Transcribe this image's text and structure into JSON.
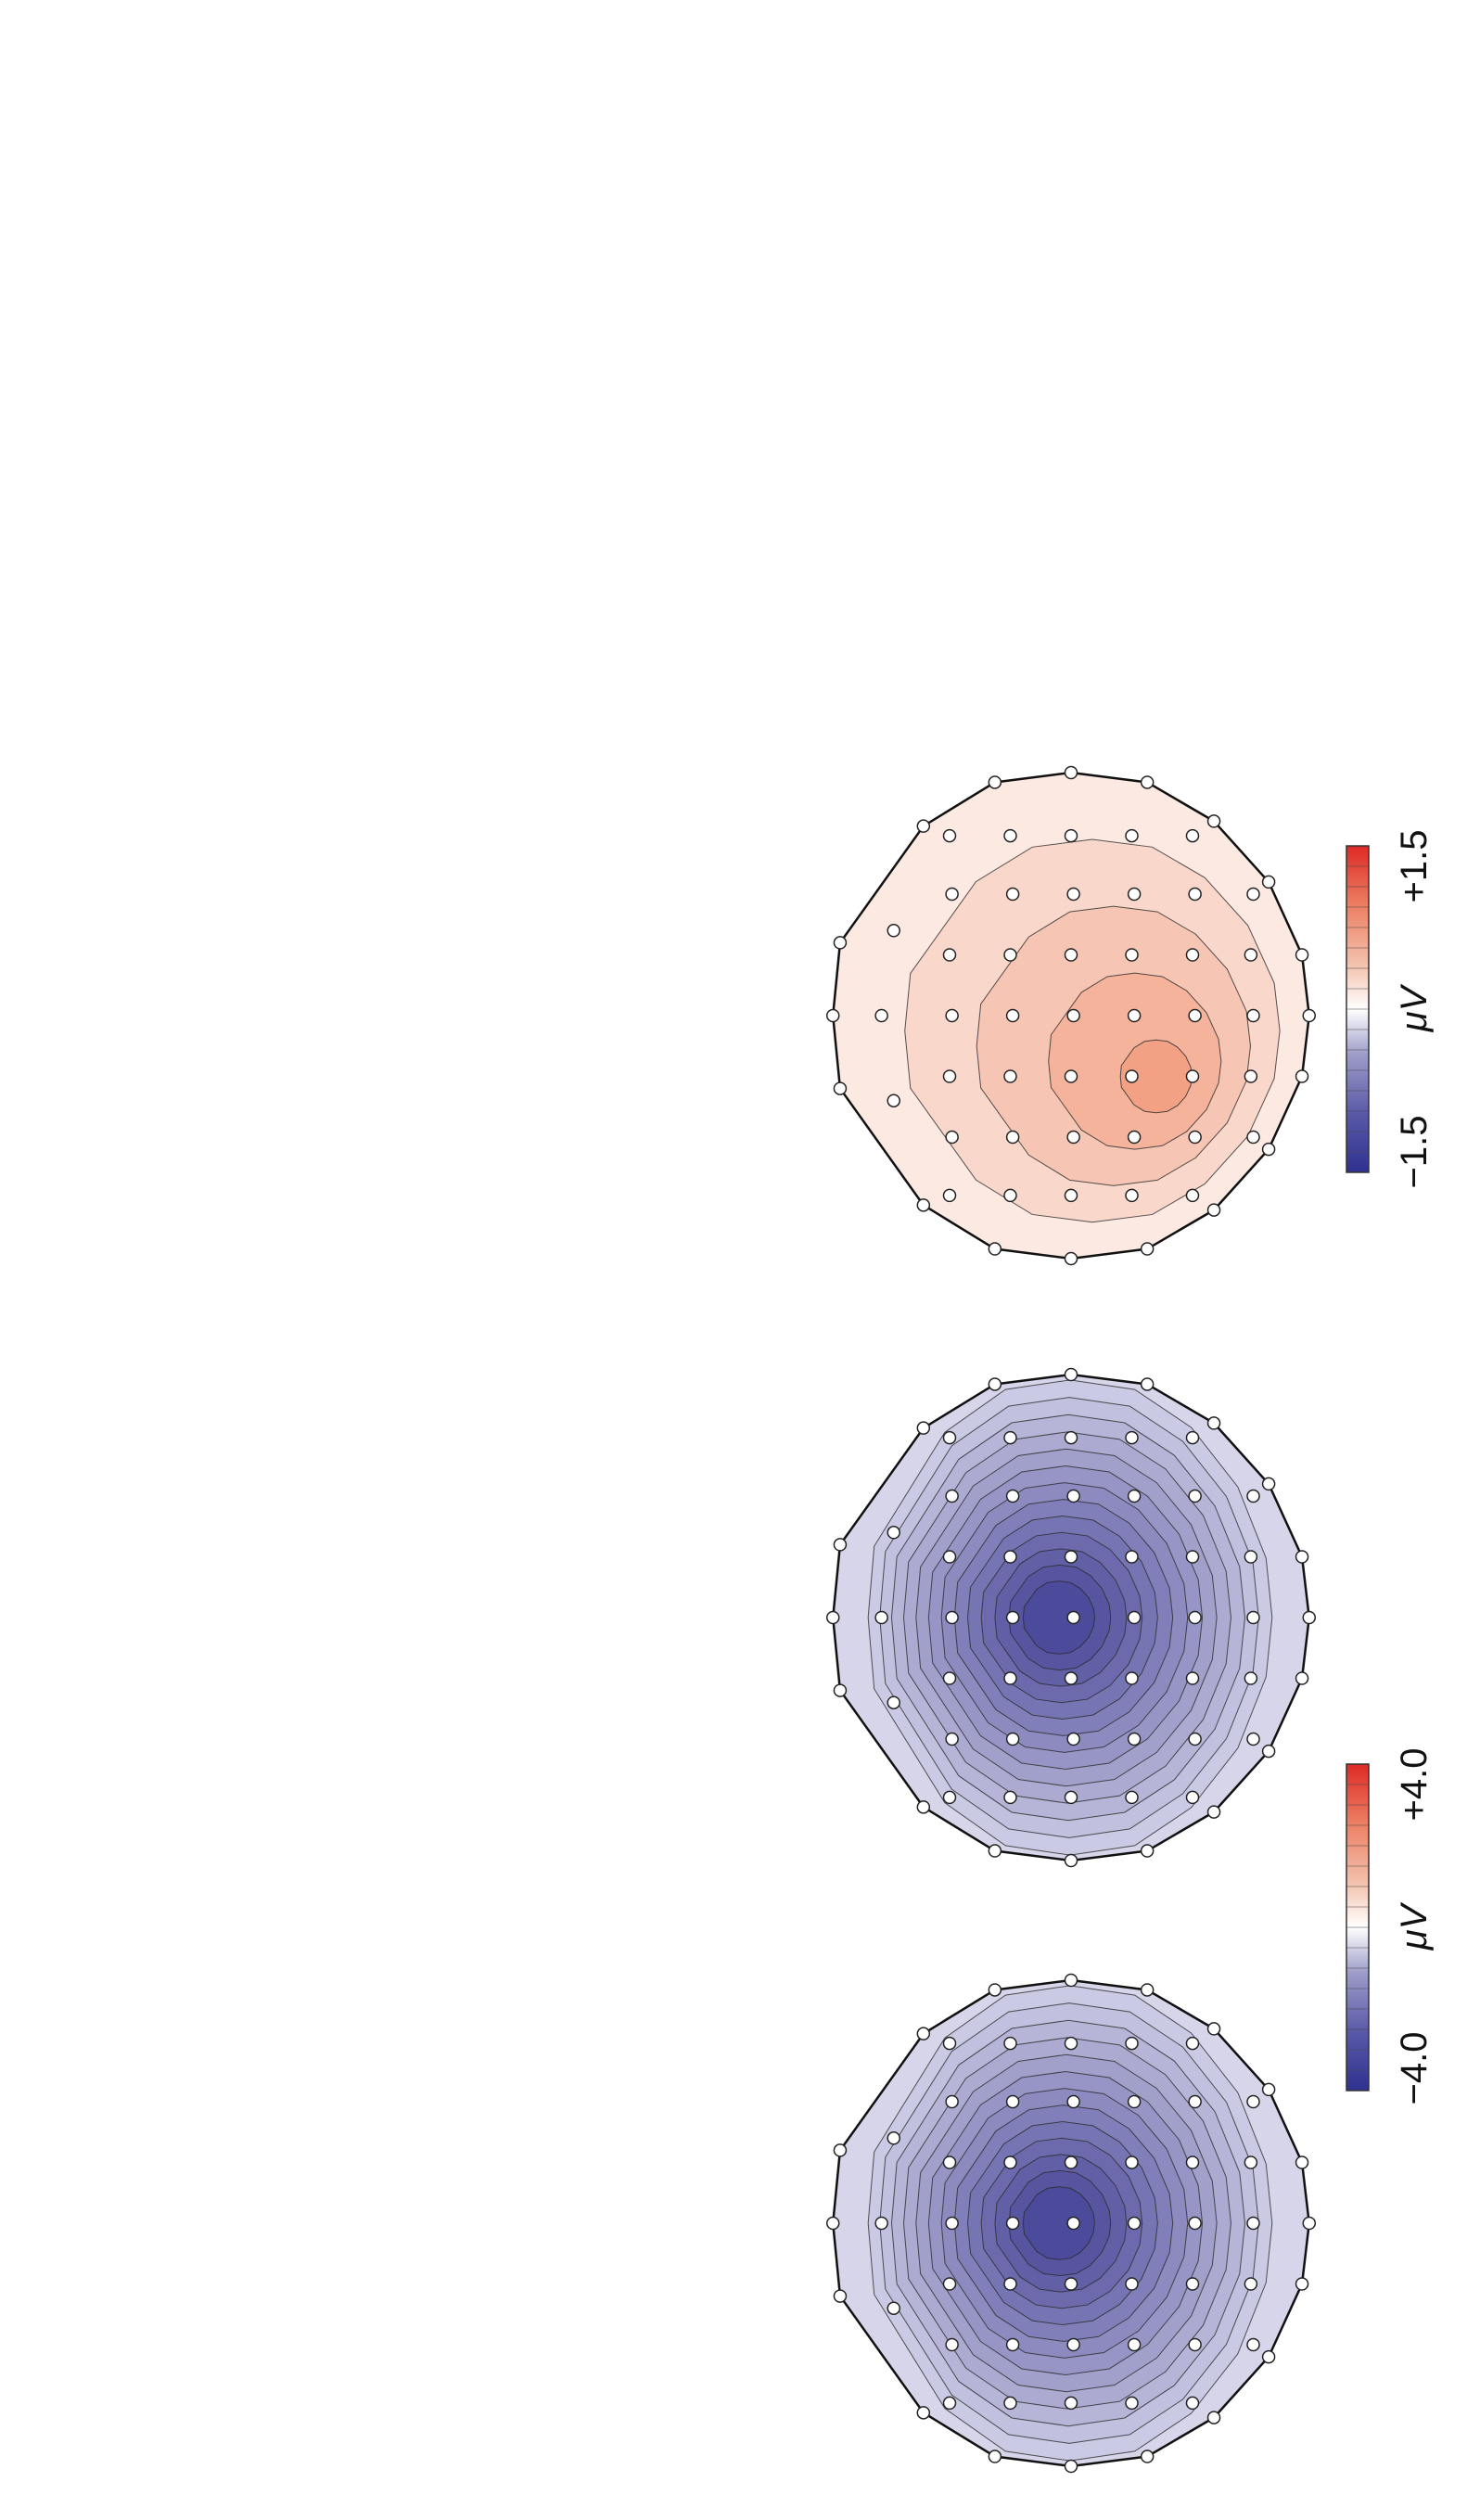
{
  "figure": {
    "maps": [
      {
        "id": "map-1",
        "field": "negative-strong"
      },
      {
        "id": "map-2",
        "field": "negative-strong"
      },
      {
        "id": "map-3",
        "field": "positive-weak"
      }
    ],
    "colorbars": [
      {
        "id": "colorbar-left",
        "min_label": "−4.0",
        "max_label": "+4.0",
        "unit_label": "μV"
      },
      {
        "id": "colorbar-right",
        "min_label": "−1.5",
        "max_label": "+1.5",
        "unit_label": "μV"
      }
    ],
    "colors": {
      "scale_negative": "#3b3a8c",
      "scale_zero": "#ffffff",
      "scale_positive": "#e0322c",
      "contour_line": "#2a2a2a",
      "electrode_fill": "#ffffff",
      "electrode_stroke": "#222222"
    }
  }
}
